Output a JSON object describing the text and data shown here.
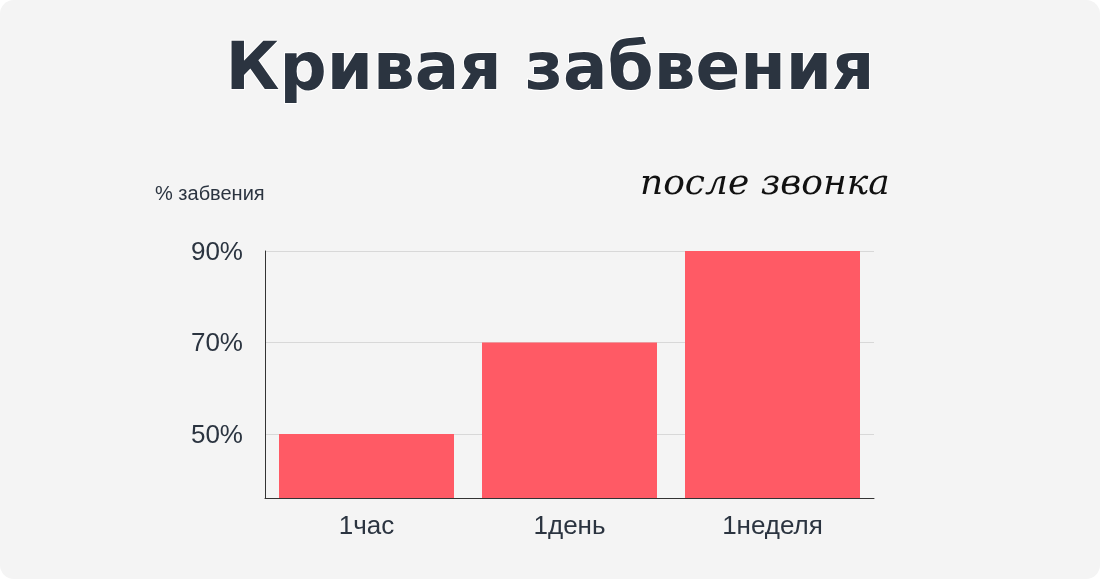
{
  "chart_data": {
    "type": "bar",
    "title": "Кривая забвения",
    "subtitle": "после звонка",
    "ylabel": "% забвения",
    "categories": [
      "1час",
      "1день",
      "1неделя"
    ],
    "values": [
      50,
      70,
      90
    ],
    "color": "#ff5a65",
    "ylim": [
      36,
      90
    ],
    "yticks": [
      {
        "value": 50,
        "label": "50%"
      },
      {
        "value": 70,
        "label": "70%"
      },
      {
        "value": 90,
        "label": "90%"
      }
    ],
    "grid": "y"
  }
}
